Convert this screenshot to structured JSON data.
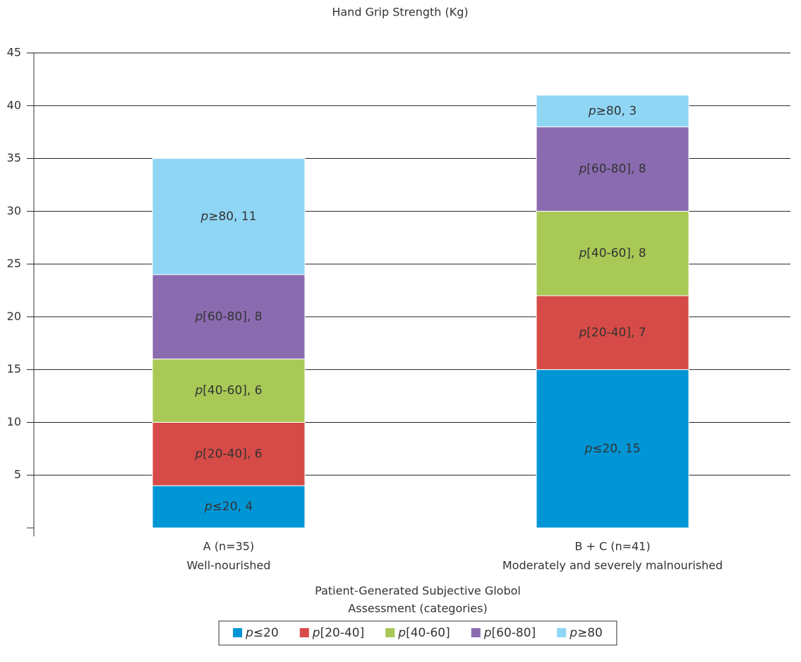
{
  "chart_data": {
    "type": "stacked-bar",
    "title": "Hand Grip Strength (Kg)",
    "x_label": [
      "Patient-Generated Subjective Globol",
      "Assessment (categories)"
    ],
    "categories": [
      [
        "A (n=35)",
        "Well-nourished"
      ],
      [
        "B + C (n=41)",
        "Moderately and severely malnourished"
      ]
    ],
    "series": [
      {
        "name": "p≤20",
        "color": "#0096d6",
        "values": [
          4,
          15
        ],
        "value_labels": [
          "p≤20, 4",
          "p≤20, 15"
        ]
      },
      {
        "name": "p[20-40]",
        "color": "#d64b47",
        "values": [
          6,
          7
        ],
        "value_labels": [
          "p[20-40], 6",
          "p[20-40], 7"
        ]
      },
      {
        "name": "p[40-60]",
        "color": "#a8c956",
        "values": [
          6,
          8
        ],
        "value_labels": [
          "p[40-60], 6",
          "p[40-60], 8"
        ]
      },
      {
        "name": "p[60-80]",
        "color": "#8b6bb0",
        "values": [
          8,
          8
        ],
        "value_labels": [
          "p[60-80], 8",
          "p[60-80], 8"
        ]
      },
      {
        "name": "p≥80",
        "color": "#8fd6f5",
        "values": [
          11,
          3
        ],
        "value_labels": [
          "p≥80, 11",
          "p≥80, 3"
        ]
      }
    ],
    "ylim": [
      0,
      45
    ],
    "yticks": [
      5,
      10,
      15,
      20,
      25,
      30,
      35,
      40,
      45
    ],
    "grid": true,
    "legend": "bottom"
  }
}
